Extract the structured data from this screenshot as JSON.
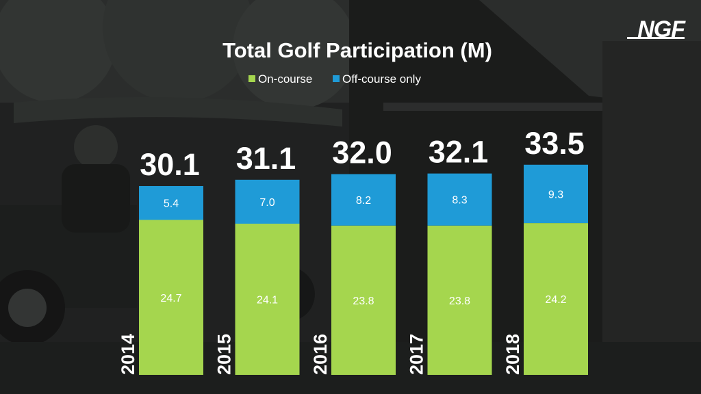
{
  "logo_text": "NGF",
  "colors": {
    "on_course": "#a5d64e",
    "off_course": "#1f9bd7",
    "text": "#ffffff",
    "background": "#2a2c2b"
  },
  "chart_data": {
    "type": "bar",
    "stacked": true,
    "title": "Total Golf Participation (M)",
    "xlabel": "",
    "ylabel": "",
    "categories": [
      "2014",
      "2015",
      "2016",
      "2017",
      "2018"
    ],
    "totals": [
      "30.1",
      "31.1",
      "32.0",
      "32.1",
      "33.5"
    ],
    "series": [
      {
        "name": "On-course",
        "color": "#a5d64e",
        "values": [
          24.7,
          24.1,
          23.8,
          23.8,
          24.2
        ]
      },
      {
        "name": "Off-course only",
        "color": "#1f9bd7",
        "values": [
          5.4,
          7.0,
          8.2,
          8.3,
          9.3
        ]
      }
    ],
    "ylim": [
      0,
      33.5
    ],
    "grid": false,
    "legend_position": "top-center"
  }
}
